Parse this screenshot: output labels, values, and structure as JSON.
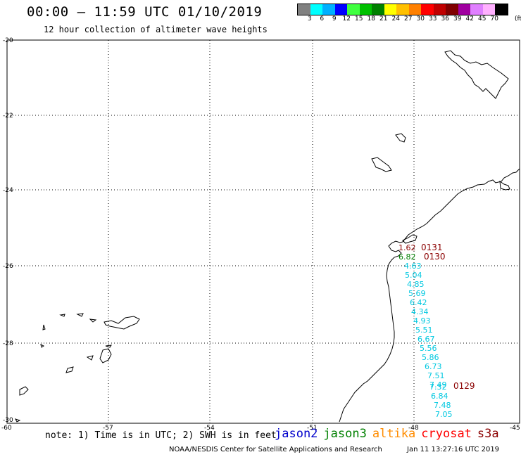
{
  "header": {
    "title": "00:00 – 11:59 UTC 01/10/2019",
    "subtitle": "12 hour collection of altimeter wave heights"
  },
  "legend": {
    "labels": [
      "3",
      "6",
      "9",
      "12",
      "15",
      "18",
      "21",
      "24",
      "27",
      "30",
      "33",
      "36",
      "39",
      "42",
      "45",
      "70"
    ],
    "unit": "(ft)",
    "colors": [
      "#808080",
      "#00ffff",
      "#00b0ff",
      "#0000ff",
      "#40ff40",
      "#00c000",
      "#008000",
      "#ffff00",
      "#ffc000",
      "#ff8000",
      "#ff0000",
      "#c00000",
      "#800000",
      "#a000a0",
      "#e080ff",
      "#ffb0ff",
      "#000000"
    ]
  },
  "axes": {
    "lat_labels": [
      "-20",
      "-22",
      "-24",
      "-26",
      "-28",
      "-30"
    ],
    "lon_labels": [
      "-60",
      "-57",
      "-54",
      "-51",
      "-48",
      "-45"
    ]
  },
  "tracks": {
    "passes": [
      {
        "id": "0131",
        "color": "#8b0000"
      },
      {
        "id": "0130",
        "color": "#8b0000"
      },
      {
        "id": "0129",
        "color": "#8b0000"
      }
    ],
    "swh": [
      {
        "v": "1.62",
        "color": "#8b0000"
      },
      {
        "v": "6.82",
        "color": "#008000"
      },
      {
        "v": "4.63",
        "color": "#00c8e0"
      },
      {
        "v": "5.04",
        "color": "#00c8e0"
      },
      {
        "v": "4.85",
        "color": "#00c8e0"
      },
      {
        "v": "5.69",
        "color": "#00c8e0"
      },
      {
        "v": "6.42",
        "color": "#00c8e0"
      },
      {
        "v": "4.34",
        "color": "#00c8e0"
      },
      {
        "v": "4.93",
        "color": "#00c8e0"
      },
      {
        "v": "5.51",
        "color": "#00c8e0"
      },
      {
        "v": "6.67",
        "color": "#00c8e0"
      },
      {
        "v": "5.56",
        "color": "#00c8e0"
      },
      {
        "v": "5.86",
        "color": "#00c8e0"
      },
      {
        "v": "6.73",
        "color": "#00c8e0"
      },
      {
        "v": "7.51",
        "color": "#00c8e0"
      },
      {
        "v": "7.49",
        "color": "#00c8e0"
      },
      {
        "v": "7.32",
        "color": "#00c8e0"
      },
      {
        "v": "6.84",
        "color": "#00c8e0"
      },
      {
        "v": "7.48",
        "color": "#00c8e0"
      },
      {
        "v": "7.05",
        "color": "#00c8e0"
      }
    ]
  },
  "footer": {
    "note": "note: 1) Time is in UTC; 2) SWH is in feet",
    "satellites": [
      {
        "name": "jason2",
        "color": "#0000cc"
      },
      {
        "name": "jason3",
        "color": "#008000"
      },
      {
        "name": "altika",
        "color": "#ff8c00"
      },
      {
        "name": "cryosat",
        "color": "#ff0000"
      },
      {
        "name": "s3a",
        "color": "#8b0000"
      }
    ],
    "credit": "NOAA/NESDIS Center for Satellite Applications and Research",
    "timestamp": "Jan 11 13:27:16 UTC 2019"
  }
}
